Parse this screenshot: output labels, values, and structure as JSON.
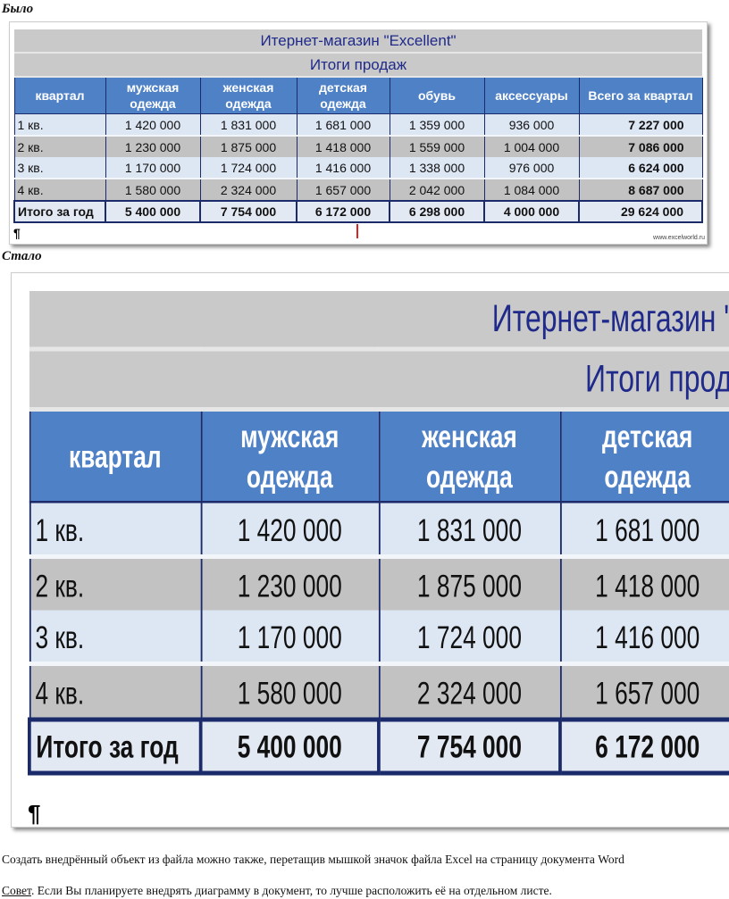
{
  "before_label": "Было",
  "after_label": "Стало",
  "table": {
    "title": "Итернет-магазин \"Excellent\"",
    "subtitle": "Итоги продаж",
    "headers": [
      "квартал",
      "мужская одежда",
      "женская одежда",
      "детская одежда",
      "обувь",
      "аксессуары",
      "Всего за квартал"
    ],
    "rows": [
      [
        "1 кв.",
        "1 420 000",
        "1 831 000",
        "1 681 000",
        "1 359 000",
        "936 000",
        "7 227 000"
      ],
      [
        "2 кв.",
        "1 230 000",
        "1 875 000",
        "1 418 000",
        "1 559 000",
        "1 004 000",
        "7 086 000"
      ],
      [
        "3 кв.",
        "1 170 000",
        "1 724 000",
        "1 416 000",
        "1 338 000",
        "976 000",
        "6 624 000"
      ],
      [
        "4 кв.",
        "1 580 000",
        "2 324 000",
        "1 657 000",
        "2 042 000",
        "1 084 000",
        "8 687 000"
      ]
    ],
    "total": [
      "Итого за год",
      "5 400 000",
      "7 754 000",
      "6 172 000",
      "6 298 000",
      "4 000 000",
      "29 624 000"
    ]
  },
  "pilcrow": "¶",
  "watermark": "www.excelworld.ru",
  "paragraph1": "Создать внедрённый объект из файла можно также, перетащив мышкой значок файла Excel на страницу документа Word",
  "paragraph2_link": "Совет",
  "paragraph2_rest": ". Если Вы планируете внедрять диаграмму в документ, то лучше расположить её на отдельном листе."
}
